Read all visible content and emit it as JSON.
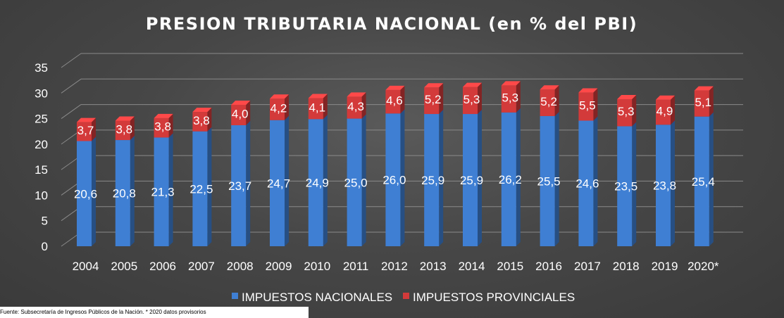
{
  "chart_data": {
    "type": "bar",
    "stacked": true,
    "title": "PRESION TRIBUTARIA NACIONAL (en % del PBI)",
    "categories": [
      "2004",
      "2005",
      "2006",
      "2007",
      "2008",
      "2009",
      "2010",
      "2011",
      "2012",
      "2013",
      "2014",
      "2015",
      "2016",
      "2017",
      "2018",
      "2019",
      "2020*"
    ],
    "series": [
      {
        "name": "IMPUESTOS NACIONALES",
        "color": "#3f7fd3",
        "values": [
          20.6,
          20.8,
          21.3,
          22.5,
          23.7,
          24.7,
          24.9,
          25.0,
          26.0,
          25.9,
          25.9,
          26.2,
          25.5,
          24.6,
          23.5,
          23.8,
          25.4
        ],
        "labels": [
          "20,6",
          "20,8",
          "21,3",
          "22,5",
          "23,7",
          "24,7",
          "24,9",
          "25,0",
          "26,0",
          "25,9",
          "25,9",
          "26,2",
          "25,5",
          "24,6",
          "23,5",
          "23,8",
          "25,4"
        ]
      },
      {
        "name": "IMPUESTOS PROVINCIALES",
        "color": "#d33a3a",
        "values": [
          3.7,
          3.8,
          3.8,
          3.8,
          4.0,
          4.2,
          4.1,
          4.3,
          4.6,
          5.2,
          5.3,
          5.3,
          5.2,
          5.5,
          5.3,
          4.9,
          5.1
        ],
        "labels": [
          "3,7",
          "3,8",
          "3,8",
          "3,8",
          "4,0",
          "4,2",
          "4,1",
          "4,3",
          "4,6",
          "5,2",
          "5,3",
          "5,3",
          "5,2",
          "5,5",
          "5,3",
          "4,9",
          "5,1"
        ]
      }
    ],
    "yticks": [
      0,
      5,
      10,
      15,
      20,
      25,
      30,
      35
    ],
    "ylim": [
      0,
      35
    ],
    "grid": true,
    "legend_position": "bottom"
  },
  "source_note": "Fuente: Subsecretaría de Ingresos Públicos de la Nación. * 2020 datos provisorios"
}
